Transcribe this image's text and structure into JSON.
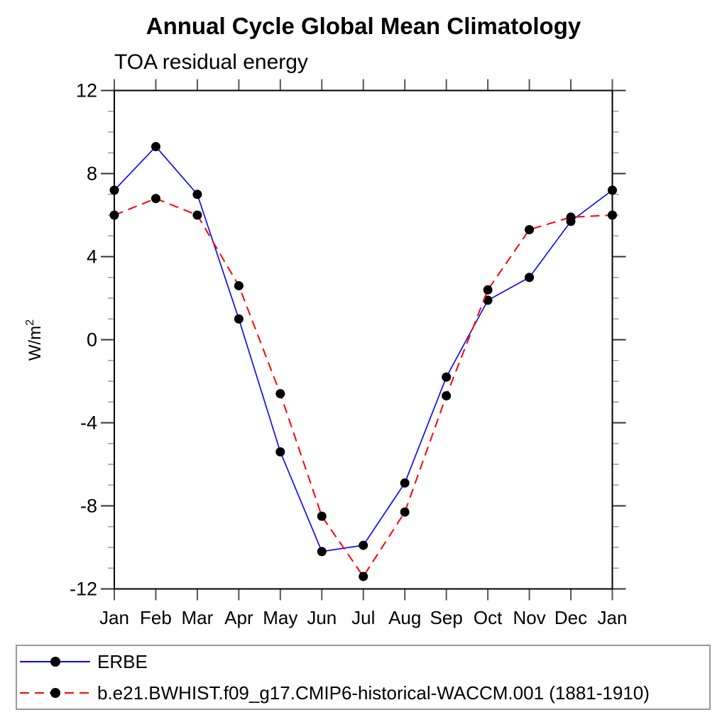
{
  "header": {
    "title": "Annual Cycle Global Mean Climatology",
    "subtitle": "TOA residual energy"
  },
  "chart_data": {
    "type": "line",
    "title": "Annual Cycle Global Mean Climatology",
    "subtitle": "TOA residual energy",
    "xlabel": "",
    "ylabel": "W/m",
    "ylabel_superscript": "2",
    "ylim": [
      -12,
      12
    ],
    "ytick_major_interval": 4,
    "ytick_minor_interval": 1,
    "yticks": [
      "-12",
      "-8",
      "-4",
      "0",
      "4",
      "8",
      "12"
    ],
    "grid": false,
    "legend_position": "bottom",
    "categories": [
      "Jan",
      "Feb",
      "Mar",
      "Apr",
      "May",
      "Jun",
      "Jul",
      "Aug",
      "Sep",
      "Oct",
      "Nov",
      "Dec",
      "Jan"
    ],
    "series": [
      {
        "name": "ERBE",
        "color": "#0000ff",
        "line_style": "solid",
        "marker": "filled-circle",
        "marker_color": "#000000",
        "values": [
          7.2,
          9.3,
          7.0,
          1.0,
          -5.4,
          -10.2,
          -9.9,
          -6.9,
          -1.8,
          1.9,
          3.0,
          5.7,
          7.2
        ]
      },
      {
        "name": "b.e21.BWHIST.f09_g17.CMIP6-historical-WACCM.001 (1881-1910)",
        "color": "#ff0000",
        "line_style": "dashed",
        "marker": "filled-circle",
        "marker_color": "#000000",
        "values": [
          6.0,
          6.8,
          6.0,
          2.6,
          -2.6,
          -8.5,
          -11.4,
          -8.3,
          -2.7,
          2.4,
          5.3,
          5.9,
          6.0
        ]
      }
    ]
  }
}
